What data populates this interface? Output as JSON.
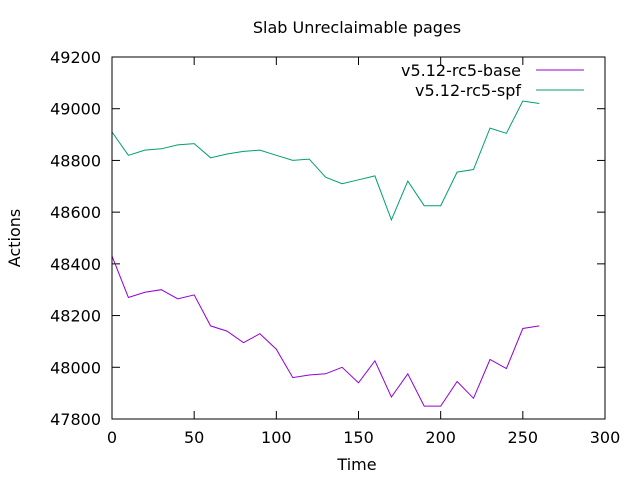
{
  "chart_data": {
    "type": "line",
    "title": "Slab Unreclaimable pages",
    "xlabel": "Time",
    "ylabel": "Actions",
    "xlim": [
      0,
      300
    ],
    "ylim": [
      47800,
      49200
    ],
    "xticks": [
      0,
      50,
      100,
      150,
      200,
      250,
      300
    ],
    "yticks": [
      47800,
      48000,
      48200,
      48400,
      48600,
      48800,
      49000,
      49200
    ],
    "grid": false,
    "legend_position": "top-right",
    "x": [
      0,
      10,
      20,
      30,
      40,
      50,
      60,
      70,
      80,
      90,
      100,
      110,
      120,
      130,
      140,
      150,
      160,
      170,
      180,
      190,
      200,
      210,
      220,
      230,
      240,
      250,
      260
    ],
    "series": [
      {
        "name": "v5.12-rc5-base",
        "color": "#9400d3",
        "values": [
          48430,
          48270,
          48290,
          48300,
          48265,
          48280,
          48160,
          48140,
          48095,
          48130,
          48070,
          47960,
          47970,
          47975,
          48000,
          47940,
          48025,
          47885,
          47975,
          47850,
          47850,
          47945,
          47880,
          48030,
          47995,
          48150,
          48160
        ]
      },
      {
        "name": "v5.12-rc5-spf",
        "color": "#009e73",
        "values": [
          48910,
          48820,
          48840,
          48845,
          48860,
          48865,
          48810,
          48825,
          48835,
          48840,
          48820,
          48800,
          48805,
          48735,
          48710,
          48725,
          48740,
          48570,
          48720,
          48625,
          48625,
          48755,
          48765,
          48925,
          48905,
          49030,
          49020
        ]
      }
    ]
  }
}
